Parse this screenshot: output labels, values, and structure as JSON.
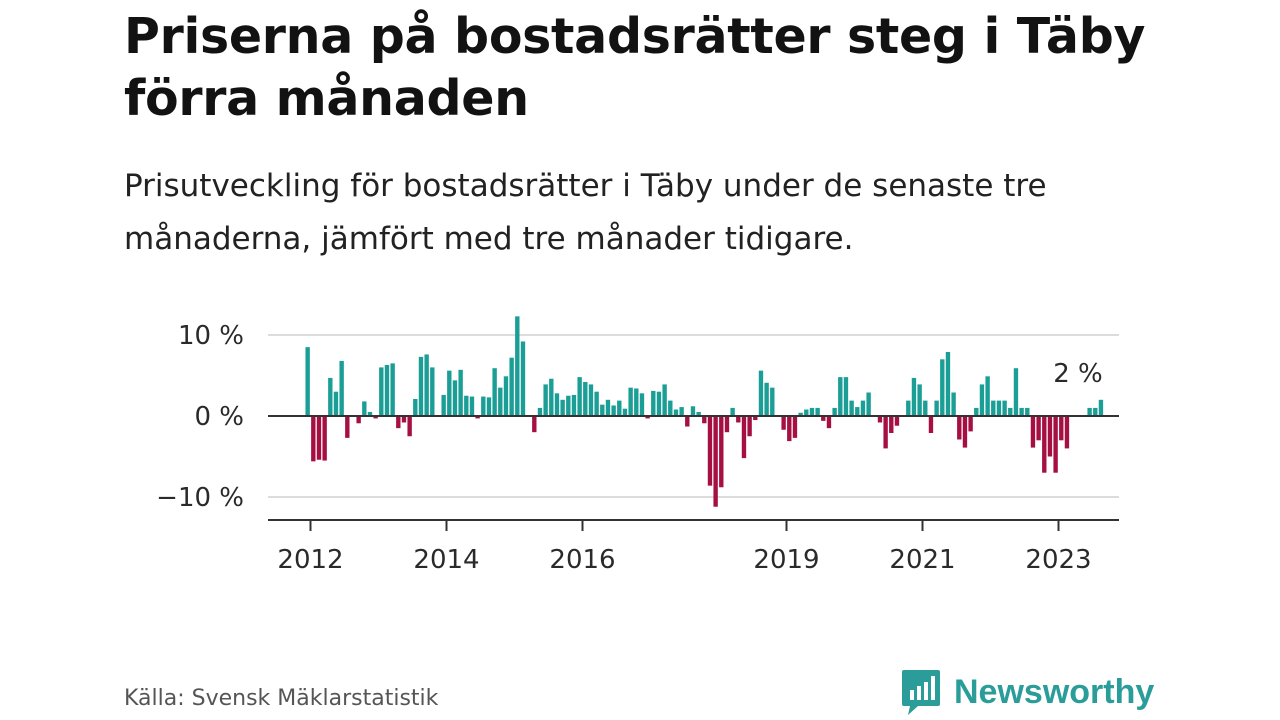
{
  "title": "Priserna på bostadsrätter steg i Täby förra månaden",
  "subtitle": "Prisutveckling för bostadsrätter i Täby under de senaste tre månaderna, jämfört med tre månader tidigare.",
  "source": "Källa: Svensk Mäklarstatistik",
  "brand": "Newsworthy",
  "colors": {
    "positive": "#1a9e96",
    "negative": "#a50f42",
    "brand": "#2a9d9a"
  },
  "chart_data": {
    "type": "bar",
    "title": "Priserna på bostadsrätter steg i Täby förra månaden",
    "xlabel": "",
    "ylabel": "",
    "ylim": [
      -12,
      13
    ],
    "yticks": [
      10,
      0,
      -10
    ],
    "ytick_labels": [
      "10 %",
      "0 %",
      "−10 %"
    ],
    "x_start": 2011.958,
    "x_step": 0.08333,
    "xticks": [
      2012,
      2014,
      2016,
      2019,
      2021,
      2023
    ],
    "xtick_labels": [
      "2012",
      "2014",
      "2016",
      "2019",
      "2021",
      "2023"
    ],
    "last_value_label": "2 %",
    "values": [
      8.5,
      -5.6,
      -5.4,
      -5.5,
      4.7,
      3.0,
      6.8,
      -2.7,
      0,
      -0.9,
      1.8,
      0.5,
      -0.3,
      6.0,
      6.3,
      6.5,
      -1.5,
      -0.8,
      -2.5,
      2.1,
      7.3,
      7.6,
      6.0,
      0,
      2.6,
      5.6,
      4.4,
      5.7,
      2.5,
      2.4,
      -0.3,
      2.4,
      2.3,
      5.9,
      3.5,
      4.9,
      7.2,
      12.3,
      9.2,
      0,
      -2.0,
      1.0,
      3.9,
      4.6,
      2.8,
      2.0,
      2.5,
      2.6,
      4.8,
      4.2,
      3.9,
      3.0,
      1.4,
      2.0,
      1.3,
      1.9,
      0.9,
      3.5,
      3.4,
      2.8,
      -0.3,
      3.1,
      3.0,
      3.9,
      1.9,
      0.8,
      1.1,
      -1.3,
      1.2,
      0.5,
      -0.9,
      -8.6,
      -11.2,
      -8.8,
      -2.0,
      1.0,
      -0.8,
      -5.2,
      -2.5,
      -0.5,
      5.6,
      4.1,
      3.5,
      0,
      -1.7,
      -3.1,
      -2.7,
      0.4,
      0.8,
      1.0,
      1.0,
      -0.6,
      -1.5,
      1.0,
      4.8,
      4.8,
      1.9,
      1.1,
      1.9,
      2.9,
      0,
      -0.8,
      -4.0,
      -2.1,
      -1.2,
      0,
      1.9,
      4.7,
      3.9,
      1.9,
      -2.1,
      1.9,
      7.0,
      7.9,
      2.9,
      -2.9,
      -3.9,
      -1.9,
      1.0,
      3.9,
      4.9,
      1.9,
      1.9,
      1.9,
      1.0,
      5.9,
      1.0,
      1.0,
      -3.9,
      -3.0,
      -7.0,
      -5.0,
      -7.0,
      -3.0,
      -4.0,
      0,
      0,
      0,
      1.0,
      1.0,
      2.0
    ]
  }
}
